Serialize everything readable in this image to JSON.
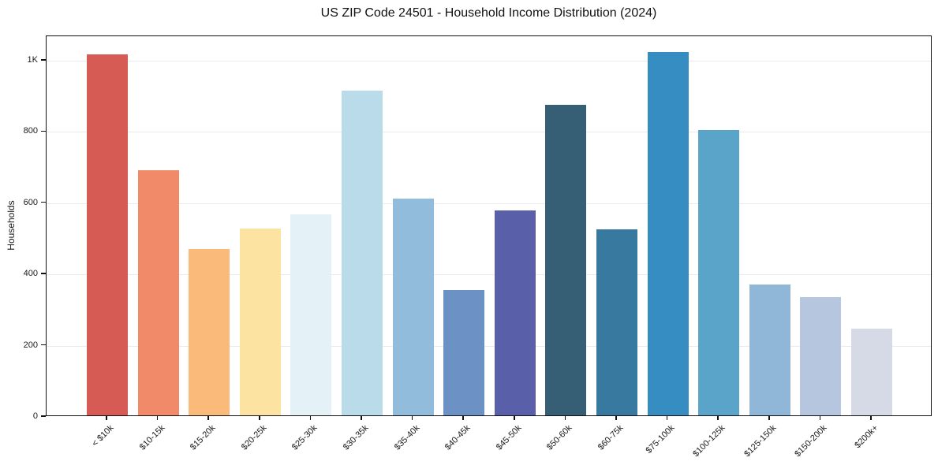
{
  "chart_data": {
    "type": "bar",
    "title": "US ZIP Code 24501 - Household Income Distribution (2024)",
    "xlabel": "",
    "ylabel": "Households",
    "categories": [
      "< $10k",
      "$10-15k",
      "$15-20k",
      "$20-25k",
      "$25-30k",
      "$30-35k",
      "$35-40k",
      "$40-45k",
      "$45-50k",
      "$50-60k",
      "$60-75k",
      "$75-100k",
      "$100-125k",
      "$125-150k",
      "$150-200k",
      "$200k+"
    ],
    "values": [
      1012,
      688,
      466,
      524,
      564,
      912,
      609,
      352,
      574,
      871,
      522,
      1019,
      801,
      368,
      332,
      243
    ],
    "bar_colors": [
      "#d65b54",
      "#f08a68",
      "#f9ba7a",
      "#fce3a1",
      "#e4f1f6",
      "#b9dbea",
      "#92bcdb",
      "#6c92c5",
      "#5a5fa9",
      "#365e75",
      "#38799f",
      "#358dc1",
      "#5ba4c9",
      "#90b6d8",
      "#b5c6de",
      "#d6d9e6"
    ],
    "ylim": [
      0,
      1068
    ],
    "yticks": [
      {
        "value": 0,
        "label": "0"
      },
      {
        "value": 200,
        "label": "200"
      },
      {
        "value": 400,
        "label": "400"
      },
      {
        "value": 600,
        "label": "600"
      },
      {
        "value": 800,
        "label": "800"
      },
      {
        "value": 1000,
        "label": "1K"
      }
    ],
    "grid": "horizontal",
    "grid_color": "#e9eaec",
    "legend_position": "none",
    "text_color": "#1a1a1a",
    "background_color": "#ffffff",
    "xtick_rotation": 45
  }
}
